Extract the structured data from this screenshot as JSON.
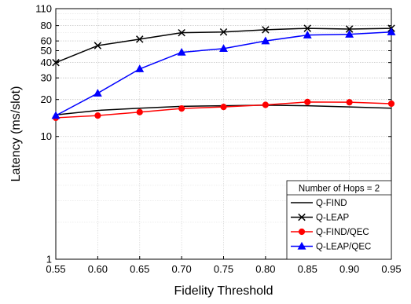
{
  "chart_data": {
    "type": "line",
    "xlabel": "Fidelity Threshold",
    "ylabel": "Latency (ms/slot)",
    "x": [
      0.55,
      0.6,
      0.65,
      0.7,
      0.75,
      0.8,
      0.85,
      0.9,
      0.95
    ],
    "xlim": [
      0.55,
      0.95
    ],
    "ylim": [
      1,
      110
    ],
    "yscale": "log",
    "grid": true,
    "x_tick_labels": [
      "0.55",
      "0.60",
      "0.65",
      "0.70",
      "0.75",
      "0.80",
      "0.85",
      "0.90",
      "0.95"
    ],
    "y_ticks": [
      1,
      10,
      20,
      30,
      40,
      50,
      60,
      80,
      110
    ],
    "y_tick_labels": [
      "1",
      "10",
      "20",
      "30",
      "40",
      "50",
      "60",
      "80",
      "110"
    ],
    "legend": {
      "title": "Number of Hops = 2",
      "position": "bottom-right"
    },
    "series": [
      {
        "name": "Q-FIND",
        "color": "#000000",
        "marker": "none",
        "values": [
          15.0,
          16.3,
          17.0,
          17.6,
          17.8,
          18.0,
          17.8,
          17.4,
          17.0
        ]
      },
      {
        "name": "Q-LEAP",
        "color": "#000000",
        "marker": "x",
        "values": [
          40,
          55,
          62,
          70,
          71,
          74,
          76,
          75,
          76
        ]
      },
      {
        "name": "Q-FIND/QEC",
        "color": "#ff0000",
        "marker": "circle",
        "values": [
          14.2,
          14.8,
          15.8,
          16.9,
          17.4,
          18.1,
          19.1,
          19.0,
          18.5
        ]
      },
      {
        "name": "Q-LEAP/QEC",
        "color": "#0000ff",
        "marker": "triangle",
        "values": [
          14.8,
          22.5,
          35.5,
          48.5,
          52,
          60,
          67,
          68,
          71
        ]
      }
    ]
  }
}
